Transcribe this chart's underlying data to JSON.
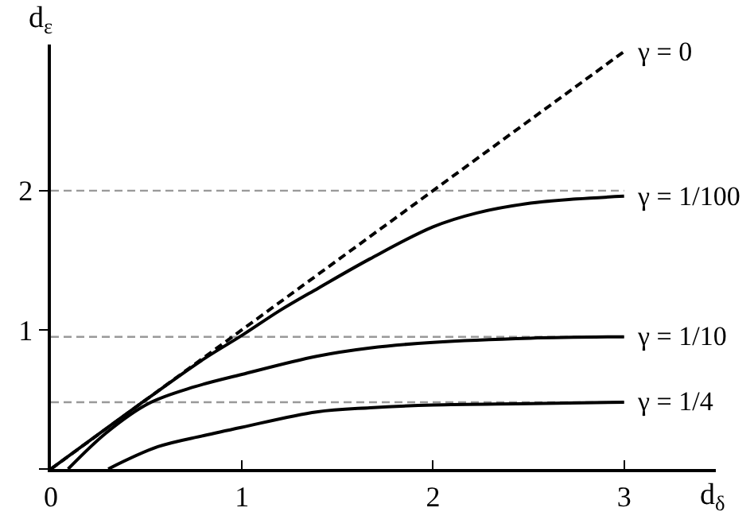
{
  "chart_data": {
    "type": "line",
    "xlabel": "d$_{δ}$",
    "ylabel": "d$_{ε}$",
    "xlim": [
      0,
      3.48
    ],
    "ylim": [
      0,
      3.05
    ],
    "xticks": [
      0,
      1,
      2,
      3
    ],
    "yticks": [
      {
        "value": 0,
        "label": null
      },
      1,
      2
    ],
    "grid": false,
    "legend": false,
    "marker": "none",
    "series": [
      {
        "name": "γ = 0",
        "color": "#000000",
        "line_style": "dashed",
        "x": [
          0,
          3
        ],
        "values": [
          0,
          3
        ]
      },
      {
        "name": "γ = 1/100",
        "color": "#000000",
        "line_style": "solid",
        "x": [
          0,
          0.5,
          0.8,
          1,
          1.2,
          1.4,
          1.67,
          2,
          2.23,
          2.51,
          2.75,
          3
        ],
        "values": [
          0,
          0.5,
          0.79,
          0.96,
          1.14,
          1.3,
          1.51,
          1.74,
          1.84,
          1.91,
          1.94,
          1.96
        ]
      },
      {
        "name": "γ = 1/10",
        "color": "#000000",
        "line_style": "solid",
        "x": [
          0.09,
          0.29,
          0.51,
          0.75,
          1,
          1.39,
          1.67,
          2,
          2.51,
          3
        ],
        "values": [
          0,
          0.26,
          0.47,
          0.59,
          0.68,
          0.81,
          0.87,
          0.91,
          0.94,
          0.95
        ]
      },
      {
        "name": "γ = 1/4",
        "color": "#000000",
        "line_style": "solid",
        "x": [
          0.3,
          0.56,
          0.8,
          1,
          1.39,
          1.67,
          2,
          2.51,
          3
        ],
        "values": [
          0,
          0.16,
          0.24,
          0.3,
          0.41,
          0.44,
          0.46,
          0.47,
          0.48
        ]
      }
    ],
    "ref_lines": [
      {
        "axis": "y",
        "value": 2,
        "color": "#999999",
        "line_style": "dashed"
      },
      {
        "axis": "y",
        "value": 0.95,
        "color": "#999999",
        "line_style": "dashed"
      },
      {
        "axis": "y",
        "value": 0.48,
        "color": "#999999",
        "line_style": "dashed"
      }
    ]
  }
}
